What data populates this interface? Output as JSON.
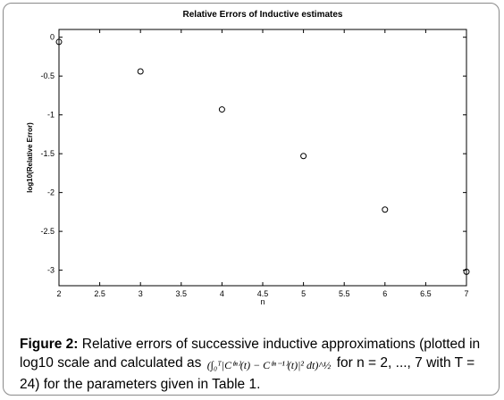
{
  "chart_data": {
    "type": "scatter",
    "title": "Relative Errors of Inductive estimates",
    "xlabel": "n",
    "ylabel": "log10(Relative Error)",
    "xlim": [
      2,
      7
    ],
    "ylim": [
      -3.2,
      0.1
    ],
    "x_ticks": [
      "2",
      "2.5",
      "3",
      "3.5",
      "4",
      "4.5",
      "5",
      "5.5",
      "6",
      "6.5",
      "7"
    ],
    "y_ticks": [
      "0",
      "-0.5",
      "-1",
      "-1.5",
      "-2",
      "-2.5",
      "-3"
    ],
    "x": [
      2,
      3,
      4,
      5,
      6,
      7
    ],
    "y": [
      -0.06,
      -0.44,
      -0.93,
      -1.53,
      -2.22,
      -3.02
    ],
    "marker": "circle-open",
    "grid": false,
    "colors": {
      "marker": "#000000",
      "axes": "#000000",
      "frame": "#8a8a8a"
    }
  },
  "caption": {
    "label": "Figure 2:",
    "text_before": "Relative errors of successive inductive approximations (plotted in log10 scale and calculated as",
    "formula": "(∫₀ᵀ|C⁽ⁿ⁾(t) − C⁽ⁿ⁻¹⁾(t)|² dt)^½",
    "text_after": "for n = 2, ..., 7 with T = 24) for the parameters given in Table 1."
  }
}
